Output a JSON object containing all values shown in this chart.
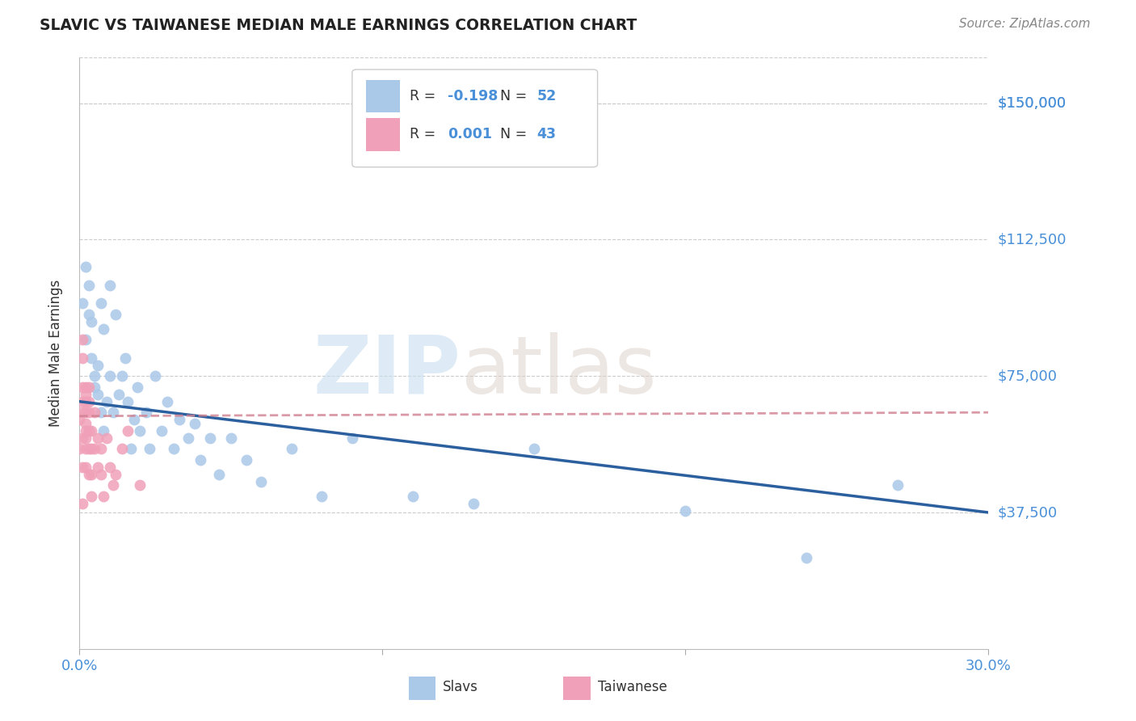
{
  "title": "SLAVIC VS TAIWANESE MEDIAN MALE EARNINGS CORRELATION CHART",
  "source": "Source: ZipAtlas.com",
  "ylabel": "Median Male Earnings",
  "xlim": [
    0.0,
    0.3
  ],
  "ylim": [
    0,
    162500
  ],
  "yticks": [
    37500,
    75000,
    112500,
    150000
  ],
  "ytick_labels": [
    "$37,500",
    "$75,000",
    "$112,500",
    "$150,000"
  ],
  "xtick_labels": [
    "0.0%",
    "30.0%"
  ],
  "legend_slavs_R": "-0.198",
  "legend_slavs_N": "52",
  "legend_taiwanese_R": "0.001",
  "legend_taiwanese_N": "43",
  "slavs_color": "#aac8e8",
  "taiwanese_color": "#f0a0b8",
  "slavs_line_color": "#2c5f9e",
  "taiwanese_line_color": "#d08090",
  "grid_color": "#cccccc",
  "slavs_x": [
    0.001,
    0.002,
    0.002,
    0.003,
    0.003,
    0.004,
    0.004,
    0.005,
    0.005,
    0.006,
    0.006,
    0.007,
    0.007,
    0.008,
    0.008,
    0.009,
    0.01,
    0.01,
    0.011,
    0.012,
    0.013,
    0.014,
    0.015,
    0.016,
    0.017,
    0.018,
    0.019,
    0.02,
    0.022,
    0.023,
    0.025,
    0.027,
    0.029,
    0.031,
    0.033,
    0.036,
    0.038,
    0.04,
    0.043,
    0.046,
    0.05,
    0.055,
    0.06,
    0.07,
    0.08,
    0.09,
    0.11,
    0.13,
    0.15,
    0.2,
    0.24,
    0.27
  ],
  "slavs_y": [
    95000,
    105000,
    85000,
    100000,
    92000,
    90000,
    80000,
    75000,
    72000,
    70000,
    78000,
    95000,
    65000,
    88000,
    60000,
    68000,
    100000,
    75000,
    65000,
    92000,
    70000,
    75000,
    80000,
    68000,
    55000,
    63000,
    72000,
    60000,
    65000,
    55000,
    75000,
    60000,
    68000,
    55000,
    63000,
    58000,
    62000,
    52000,
    58000,
    48000,
    58000,
    52000,
    46000,
    55000,
    42000,
    58000,
    42000,
    40000,
    55000,
    38000,
    25000,
    45000
  ],
  "taiwanese_x": [
    0.0,
    0.0,
    0.001,
    0.001,
    0.001,
    0.001,
    0.001,
    0.001,
    0.001,
    0.002,
    0.002,
    0.002,
    0.002,
    0.002,
    0.002,
    0.002,
    0.002,
    0.002,
    0.003,
    0.003,
    0.003,
    0.003,
    0.003,
    0.003,
    0.004,
    0.004,
    0.004,
    0.004,
    0.005,
    0.005,
    0.006,
    0.006,
    0.007,
    0.007,
    0.008,
    0.009,
    0.01,
    0.011,
    0.012,
    0.014,
    0.016,
    0.02,
    0.001
  ],
  "taiwanese_y": [
    63000,
    55000,
    85000,
    72000,
    68000,
    80000,
    65000,
    58000,
    50000,
    70000,
    68000,
    62000,
    60000,
    55000,
    72000,
    65000,
    58000,
    50000,
    68000,
    60000,
    55000,
    48000,
    72000,
    65000,
    60000,
    55000,
    48000,
    42000,
    65000,
    55000,
    58000,
    50000,
    48000,
    55000,
    42000,
    58000,
    50000,
    45000,
    48000,
    55000,
    60000,
    45000,
    40000
  ]
}
